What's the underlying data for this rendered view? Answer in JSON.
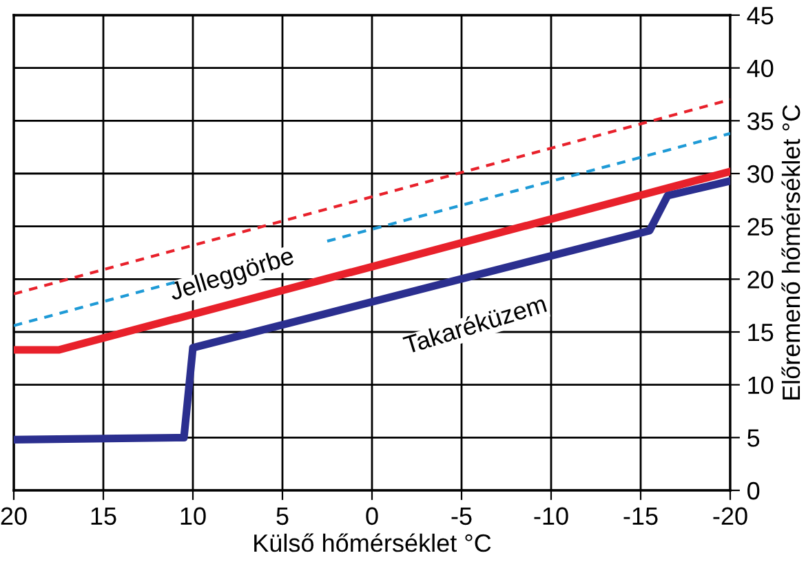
{
  "chart_data": {
    "type": "line",
    "xlabel": "Külső hőmérséklet °C",
    "ylabel": "Előremenő hőmérséklet °C",
    "xlim": [
      20,
      -20
    ],
    "xticks": [
      20,
      15,
      10,
      5,
      0,
      {
        "value": -5,
        "label": "-5"
      },
      {
        "value": -10,
        "label": "-10"
      },
      {
        "value": -15,
        "label": "-15"
      },
      {
        "value": -20,
        "label": "-20"
      }
    ],
    "ylim": [
      0,
      45
    ],
    "yticks": [
      0,
      5,
      10,
      15,
      20,
      25,
      30,
      35,
      40,
      45
    ],
    "grid": true,
    "series": [
      {
        "color": "#e8212b",
        "line_style": "dotted",
        "x": [
          20,
          -20
        ],
        "values": [
          18.6,
          37.0
        ]
      },
      {
        "color": "#1e9ad6",
        "line_style": "dotted",
        "x": [
          20,
          11,
          3,
          2.5,
          -20
        ],
        "values": [
          15.6,
          19.7,
          null,
          23.6,
          33.8
        ]
      },
      {
        "color": "#e8212b",
        "line_style": "solid",
        "x": [
          20,
          17.5,
          -20
        ],
        "values": [
          13.3,
          13.3,
          30.2
        ]
      },
      {
        "color": "#2b2f8f",
        "line_style": "solid",
        "x": [
          20,
          10.5,
          10,
          -15.5,
          -16.5,
          -20
        ],
        "values": [
          4.8,
          5.0,
          13.5,
          24.6,
          27.9,
          29.3
        ]
      }
    ],
    "annotations": [
      "Jelleggörbe",
      "Takaréküzem"
    ]
  }
}
